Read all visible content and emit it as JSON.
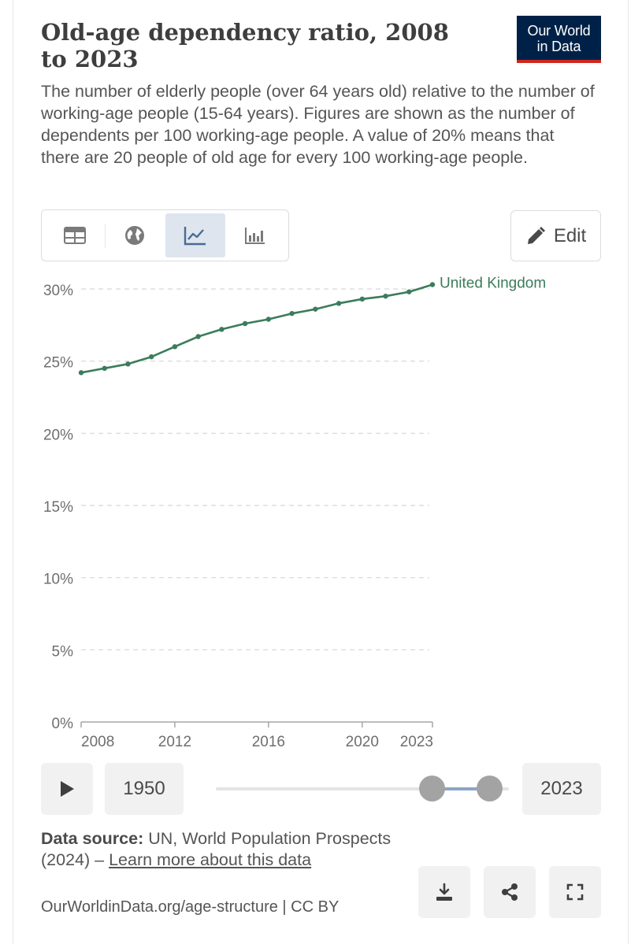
{
  "header": {
    "title": "Old-age dependency ratio, 2008 to 2023",
    "subtitle": "The number of elderly people (over 64 years old) relative to the number of working-age people (15-64 years). Figures are shown as the number of dependents per 100 working-age people. A value of 20% means that there are 20 people of old age for every 100 working-age people.",
    "logo_line1": "Our World",
    "logo_line2": "in Data"
  },
  "tabs": [
    {
      "name": "table",
      "icon": "table-icon"
    },
    {
      "name": "map",
      "icon": "globe-icon"
    },
    {
      "name": "chart",
      "icon": "line-chart-icon",
      "active": true
    },
    {
      "name": "marimekko",
      "icon": "bar-chart-icon"
    }
  ],
  "edit_label": "Edit",
  "chart_data": {
    "type": "line",
    "title": "Old-age dependency ratio, 2008 to 2023",
    "xlabel": "",
    "ylabel": "",
    "x": [
      2008,
      2009,
      2010,
      2011,
      2012,
      2013,
      2014,
      2015,
      2016,
      2017,
      2018,
      2019,
      2020,
      2021,
      2022,
      2023
    ],
    "series": [
      {
        "name": "United Kingdom",
        "color": "#3c7c5a",
        "values": [
          24.2,
          24.5,
          24.8,
          25.3,
          26.0,
          26.7,
          27.2,
          27.6,
          27.9,
          28.3,
          28.6,
          29.0,
          29.3,
          29.5,
          29.8,
          30.3
        ]
      }
    ],
    "xlim": [
      2008,
      2023
    ],
    "ylim": [
      0,
      30
    ],
    "y_ticks": [
      0,
      5,
      10,
      15,
      20,
      25,
      30
    ],
    "y_tick_labels": [
      "0%",
      "5%",
      "10%",
      "15%",
      "20%",
      "25%",
      "30%"
    ],
    "x_ticks": [
      2008,
      2012,
      2016,
      2020,
      2023
    ],
    "x_tick_labels": [
      "2008",
      "2012",
      "2016",
      "2020",
      "2023"
    ],
    "grid": true
  },
  "timeline": {
    "start_year": "1950",
    "end_year": "2023"
  },
  "footer": {
    "source_label": "Data source:",
    "source_text": "UN, World Population Prospects (2024) –",
    "learn_more": "Learn more about this data",
    "url_line": "OurWorldinData.org/age-structure | CC BY"
  },
  "colors": {
    "line": "#3c7c5a",
    "logo_bg": "#002147",
    "logo_accent": "#ce261e",
    "active_tab": "#dee5ee"
  }
}
